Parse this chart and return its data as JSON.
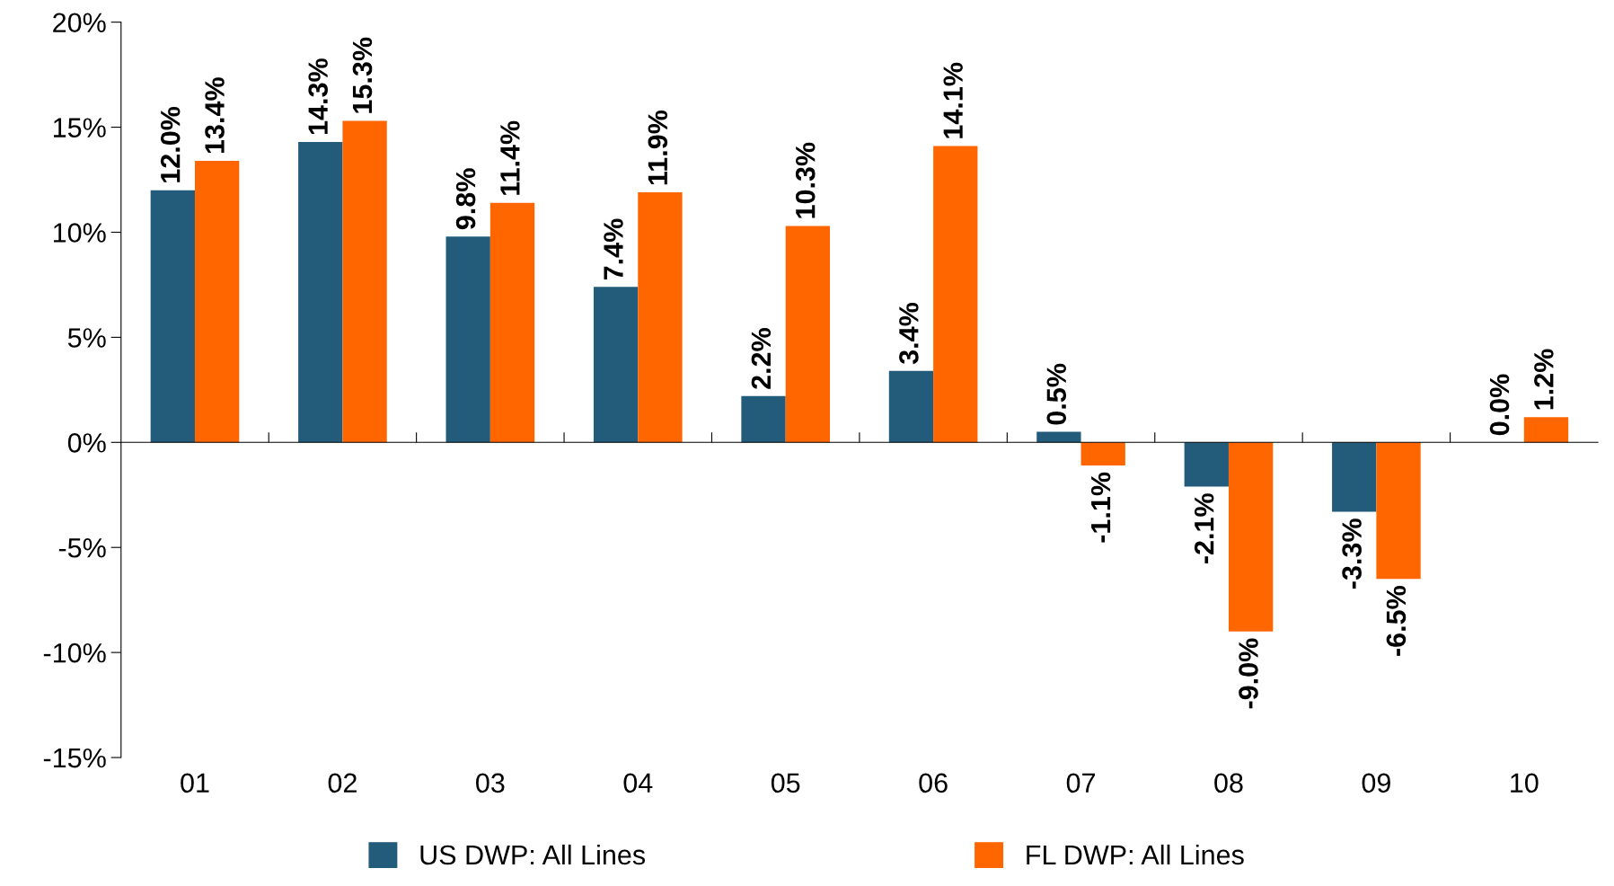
{
  "chart_data": {
    "type": "bar",
    "categories": [
      "01",
      "02",
      "03",
      "04",
      "05",
      "06",
      "07",
      "08",
      "09",
      "10"
    ],
    "series": [
      {
        "name": "US DWP: All Lines",
        "color": "#235b7a",
        "values": [
          12.0,
          14.3,
          9.8,
          7.4,
          2.2,
          3.4,
          0.5,
          -2.1,
          -3.3,
          0.0
        ],
        "value_labels": [
          "12.0%",
          "14.3%",
          "9.8%",
          "7.4%",
          "2.2%",
          "3.4%",
          "0.5%",
          "-2.1%",
          "-3.3%",
          "0.0%"
        ]
      },
      {
        "name": "FL DWP: All Lines",
        "color": "#ff6600",
        "values": [
          13.4,
          15.3,
          11.4,
          11.9,
          10.3,
          14.1,
          -1.1,
          -9.0,
          -6.5,
          1.2
        ],
        "value_labels": [
          "13.4%",
          "15.3%",
          "11.4%",
          "11.9%",
          "10.3%",
          "14.1%",
          "-1.1%",
          "-9.0%",
          "-6.5%",
          "1.2%"
        ]
      }
    ],
    "ylim": [
      -15,
      20
    ],
    "yticks": [
      {
        "value": -15,
        "label": "-15%"
      },
      {
        "value": -10,
        "label": "-10%"
      },
      {
        "value": -5,
        "label": "-5%"
      },
      {
        "value": 0,
        "label": "0%"
      },
      {
        "value": 5,
        "label": "5%"
      },
      {
        "value": 10,
        "label": "10%"
      },
      {
        "value": 15,
        "label": "15%"
      },
      {
        "value": 20,
        "label": "20%"
      }
    ],
    "legend": "bottom"
  }
}
